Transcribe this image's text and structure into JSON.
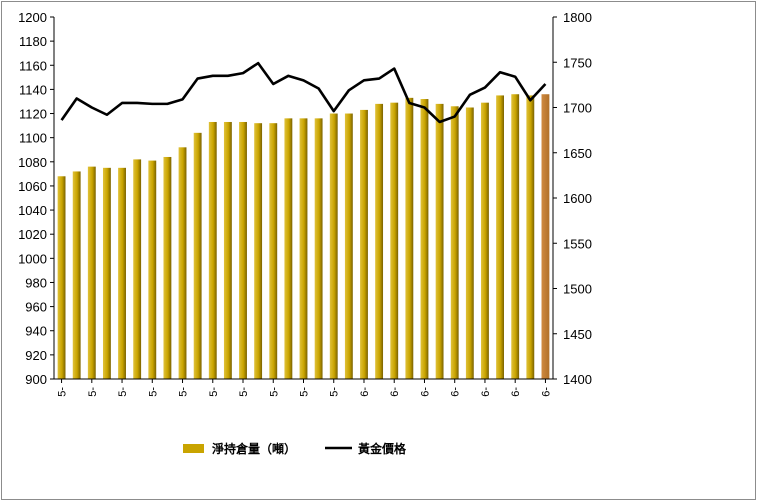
{
  "chart_data": {
    "type": "bar",
    "title": "",
    "xlabel": "",
    "ylabel": "",
    "y_left_lim": [
      900,
      1200
    ],
    "y_left_ticks": [
      900,
      920,
      940,
      960,
      980,
      1000,
      1020,
      1040,
      1060,
      1080,
      1100,
      1120,
      1140,
      1160,
      1180,
      1200
    ],
    "y_right_lim": [
      1400,
      1800
    ],
    "y_right_ticks": [
      1400,
      1450,
      1500,
      1550,
      1600,
      1650,
      1700,
      1750,
      1800
    ],
    "x_tick_labels": [
      "5-",
      "5-",
      "5-",
      "5-",
      "5-",
      "5-",
      "5-",
      "5-",
      "5-",
      "5-",
      "6-",
      "6-",
      "6-",
      "6-",
      "6-",
      "6-",
      "6-"
    ],
    "legend_position": "bottom",
    "grid": false,
    "series": [
      {
        "name": "淨持倉量（噸）",
        "type": "bar",
        "axis": "left",
        "color": "#c9a400",
        "last_color": "#b07028",
        "values": [
          1068,
          1072,
          1076,
          1075,
          1075,
          1082,
          1081,
          1084,
          1092,
          1104,
          1113,
          1113,
          1113,
          1112,
          1112,
          1116,
          1116,
          1116,
          1120,
          1120,
          1123,
          1128,
          1129,
          1133,
          1132,
          1128,
          1126,
          1125,
          1129,
          1135,
          1136,
          1135,
          1136
        ]
      },
      {
        "name": "黃金價格",
        "type": "line",
        "axis": "right",
        "color": "#000000",
        "values": [
          1686,
          1710,
          1700,
          1692,
          1705,
          1705,
          1704,
          1704,
          1709,
          1732,
          1735,
          1735,
          1738,
          1749,
          1726,
          1735,
          1730,
          1721,
          1696,
          1719,
          1730,
          1732,
          1743,
          1705,
          1700,
          1684,
          1690,
          1714,
          1722,
          1739,
          1734,
          1708,
          1726
        ]
      }
    ]
  }
}
